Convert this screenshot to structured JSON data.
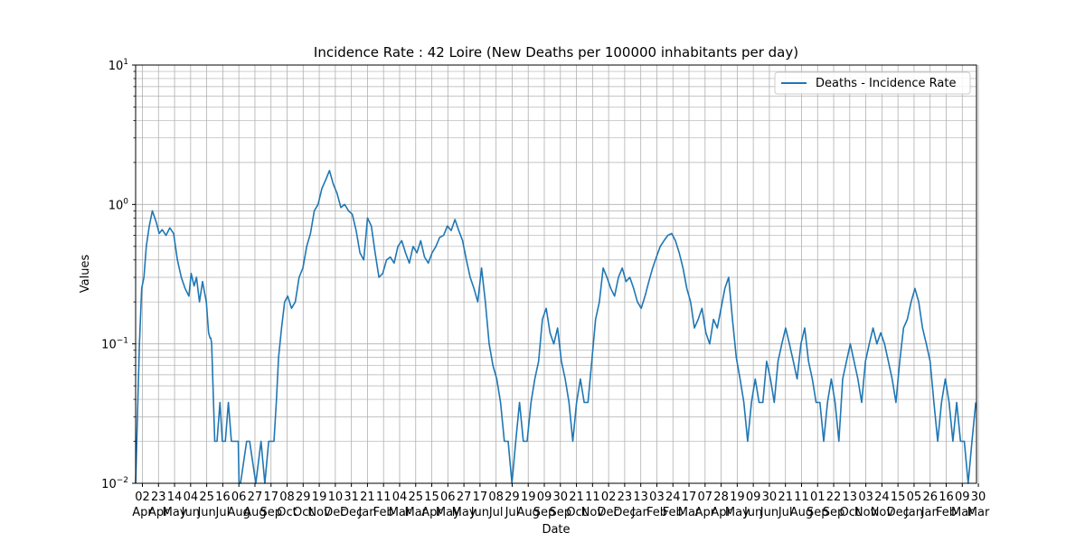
{
  "chart_data": {
    "type": "line",
    "title": "Incidence Rate : 42 Loire (New Deaths per 100000 inhabitants per day)",
    "xlabel": "Date",
    "ylabel": "Values",
    "yscale": "log",
    "ylim": [
      0.01,
      10
    ],
    "grid": true,
    "legend_position": "top-right",
    "line_color": "#1f77b4",
    "y_tick_labels": [
      {
        "value": 0.01,
        "base": "10",
        "exp": "−2"
      },
      {
        "value": 0.1,
        "base": "10",
        "exp": "−1"
      },
      {
        "value": 1,
        "base": "10",
        "exp": "0"
      },
      {
        "value": 10,
        "base": "10",
        "exp": "1"
      }
    ],
    "x_ticks": [
      {
        "day": "02",
        "month": "Apr"
      },
      {
        "day": "23",
        "month": "Apr"
      },
      {
        "day": "14",
        "month": "May"
      },
      {
        "day": "04",
        "month": "Jun"
      },
      {
        "day": "25",
        "month": "Jun"
      },
      {
        "day": "16",
        "month": "Jul"
      },
      {
        "day": "06",
        "month": "Aug"
      },
      {
        "day": "27",
        "month": "Aug"
      },
      {
        "day": "17",
        "month": "Sep"
      },
      {
        "day": "08",
        "month": "Oct"
      },
      {
        "day": "29",
        "month": "Oct"
      },
      {
        "day": "19",
        "month": "Nov"
      },
      {
        "day": "10",
        "month": "Dec"
      },
      {
        "day": "31",
        "month": "Dec"
      },
      {
        "day": "21",
        "month": "Jan"
      },
      {
        "day": "11",
        "month": "Feb"
      },
      {
        "day": "04",
        "month": "Mar"
      },
      {
        "day": "25",
        "month": "Mar"
      },
      {
        "day": "15",
        "month": "Apr"
      },
      {
        "day": "06",
        "month": "May"
      },
      {
        "day": "27",
        "month": "May"
      },
      {
        "day": "17",
        "month": "Jun"
      },
      {
        "day": "08",
        "month": "Jul"
      },
      {
        "day": "29",
        "month": "Jul"
      },
      {
        "day": "19",
        "month": "Aug"
      },
      {
        "day": "09",
        "month": "Sep"
      },
      {
        "day": "30",
        "month": "Sep"
      },
      {
        "day": "21",
        "month": "Oct"
      },
      {
        "day": "11",
        "month": "Nov"
      },
      {
        "day": "02",
        "month": "Dec"
      },
      {
        "day": "23",
        "month": "Dec"
      },
      {
        "day": "13",
        "month": "Jan"
      },
      {
        "day": "03",
        "month": "Feb"
      },
      {
        "day": "24",
        "month": "Feb"
      },
      {
        "day": "17",
        "month": "Mar"
      },
      {
        "day": "07",
        "month": "Apr"
      },
      {
        "day": "28",
        "month": "Apr"
      },
      {
        "day": "19",
        "month": "May"
      },
      {
        "day": "09",
        "month": "Jun"
      },
      {
        "day": "30",
        "month": "Jun"
      },
      {
        "day": "21",
        "month": "Jul"
      },
      {
        "day": "11",
        "month": "Aug"
      },
      {
        "day": "01",
        "month": "Sep"
      },
      {
        "day": "22",
        "month": "Sep"
      },
      {
        "day": "13",
        "month": "Oct"
      },
      {
        "day": "03",
        "month": "Nov"
      },
      {
        "day": "24",
        "month": "Nov"
      },
      {
        "day": "15",
        "month": "Dec"
      },
      {
        "day": "05",
        "month": "Jan"
      },
      {
        "day": "26",
        "month": "Jan"
      },
      {
        "day": "16",
        "month": "Feb"
      },
      {
        "day": "09",
        "month": "Mar"
      },
      {
        "day": "30",
        "month": "Mar"
      }
    ],
    "series": [
      {
        "name": "Deaths - Incidence Rate",
        "x": [
          0,
          5,
          8,
          11,
          14,
          18,
          22,
          27,
          31,
          35,
          40,
          45,
          50,
          55,
          60,
          65,
          70,
          73,
          77,
          80,
          84,
          88,
          93,
          96,
          98,
          99,
          100,
          104,
          107,
          111,
          114,
          118,
          122,
          126,
          130,
          133,
          135,
          136,
          137,
          138,
          146,
          150,
          158,
          165,
          170,
          175,
          182,
          185,
          188,
          192,
          196,
          200,
          205,
          210,
          215,
          220,
          225,
          230,
          235,
          240,
          245,
          250,
          255,
          260,
          265,
          270,
          275,
          280,
          285,
          290,
          295,
          300,
          305,
          310,
          315,
          320,
          325,
          330,
          335,
          340,
          345,
          350,
          355,
          360,
          365,
          370,
          375,
          380,
          385,
          390,
          395,
          400,
          405,
          410,
          415,
          420,
          425,
          430,
          435,
          440,
          445,
          450,
          455,
          460,
          465,
          470,
          475,
          480,
          485,
          490,
          495,
          500,
          505,
          510,
          515,
          520,
          525,
          530,
          535,
          540,
          545,
          550,
          555,
          560,
          565,
          570,
          575,
          580,
          585,
          590,
          595,
          600,
          605,
          610,
          615,
          620,
          625,
          630,
          635,
          640,
          645,
          650,
          655,
          660,
          665,
          670,
          675,
          680,
          685,
          690,
          695,
          700,
          705,
          710,
          715,
          720,
          725,
          730,
          735,
          740,
          745,
          750,
          755,
          760,
          765,
          770,
          775,
          780,
          785,
          790,
          795,
          800,
          805,
          810,
          815,
          820,
          825,
          830,
          835,
          840,
          845,
          850,
          855,
          860,
          865,
          870,
          875,
          880,
          885,
          890,
          895,
          900,
          905,
          910,
          915,
          920,
          925,
          930,
          935,
          940,
          945,
          950,
          955,
          960,
          965,
          970,
          975,
          980,
          985,
          990,
          995,
          1000,
          1005,
          1010,
          1015,
          1020,
          1025,
          1030,
          1035,
          1040,
          1045,
          1050,
          1055,
          1060,
          1065,
          1070,
          1075,
          1080,
          1085,
          1090,
          1095,
          1100,
          1105
        ],
        "values": [
          0.01,
          0.1,
          0.25,
          0.3,
          0.5,
          0.7,
          0.9,
          0.75,
          0.62,
          0.66,
          0.6,
          0.68,
          0.62,
          0.4,
          0.3,
          0.25,
          0.22,
          0.32,
          0.26,
          0.3,
          0.2,
          0.28,
          0.2,
          0.12,
          0.11,
          0.11,
          0.1,
          0.02,
          0.02,
          0.038,
          0.02,
          0.02,
          0.038,
          0.02,
          0.02,
          0.02,
          0.02,
          0.01,
          0.01,
          0.01,
          0.02,
          0.02,
          0.01,
          0.02,
          0.01,
          0.02,
          0.02,
          0.038,
          0.08,
          0.13,
          0.2,
          0.22,
          0.18,
          0.2,
          0.3,
          0.35,
          0.5,
          0.62,
          0.9,
          1.0,
          1.3,
          1.5,
          1.75,
          1.4,
          1.2,
          0.95,
          1.0,
          0.9,
          0.85,
          0.65,
          0.45,
          0.4,
          0.8,
          0.7,
          0.45,
          0.3,
          0.32,
          0.4,
          0.42,
          0.38,
          0.5,
          0.55,
          0.45,
          0.38,
          0.5,
          0.45,
          0.55,
          0.42,
          0.38,
          0.45,
          0.5,
          0.58,
          0.6,
          0.7,
          0.65,
          0.78,
          0.65,
          0.55,
          0.4,
          0.3,
          0.25,
          0.2,
          0.35,
          0.2,
          0.1,
          0.07,
          0.056,
          0.038,
          0.02,
          0.02,
          0.01,
          0.02,
          0.038,
          0.02,
          0.02,
          0.038,
          0.056,
          0.075,
          0.15,
          0.18,
          0.12,
          0.1,
          0.13,
          0.075,
          0.056,
          0.038,
          0.02,
          0.038,
          0.056,
          0.038,
          0.038,
          0.075,
          0.15,
          0.2,
          0.35,
          0.3,
          0.25,
          0.22,
          0.3,
          0.35,
          0.28,
          0.3,
          0.25,
          0.2,
          0.18,
          0.22,
          0.28,
          0.35,
          0.42,
          0.5,
          0.55,
          0.6,
          0.62,
          0.55,
          0.45,
          0.35,
          0.25,
          0.2,
          0.13,
          0.15,
          0.18,
          0.12,
          0.1,
          0.15,
          0.13,
          0.18,
          0.25,
          0.3,
          0.15,
          0.08,
          0.056,
          0.038,
          0.02,
          0.038,
          0.056,
          0.038,
          0.038,
          0.075,
          0.056,
          0.038,
          0.075,
          0.1,
          0.13,
          0.1,
          0.075,
          0.056,
          0.1,
          0.13,
          0.075,
          0.056,
          0.038,
          0.038,
          0.02,
          0.038,
          0.056,
          0.038,
          0.02,
          0.056,
          0.075,
          0.1,
          0.075,
          0.056,
          0.038,
          0.075,
          0.1,
          0.13,
          0.1,
          0.12,
          0.1,
          0.075,
          0.056,
          0.038,
          0.075,
          0.13,
          0.15,
          0.2,
          0.25,
          0.2,
          0.13,
          0.1,
          0.075,
          0.038,
          0.02,
          0.038,
          0.056,
          0.038,
          0.02,
          0.038,
          0.02,
          0.02,
          0.01,
          0.02,
          0.038
        ]
      }
    ]
  }
}
